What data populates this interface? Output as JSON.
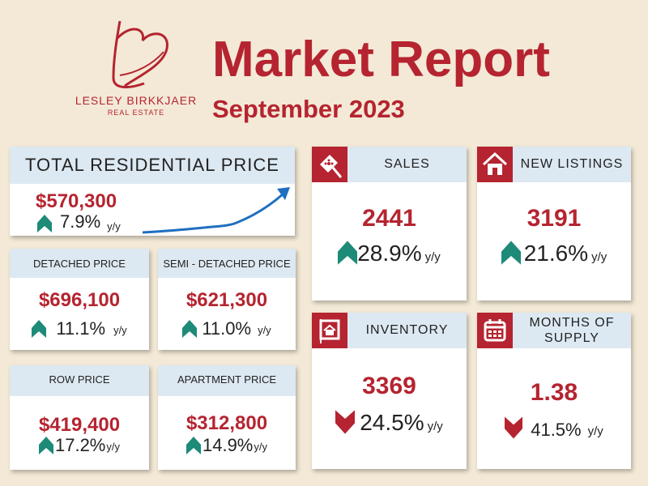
{
  "brand": {
    "name": "LESLEY BIRKKJAER",
    "sub": "REAL ESTATE"
  },
  "header": {
    "title": "Market Report",
    "subtitle": "September 2023"
  },
  "colors": {
    "accent_red": "#b52430",
    "up_teal": "#1e8a78",
    "header_blue": "#dde9f2",
    "background": "#f3e9d6"
  },
  "total": {
    "label": "TOTAL RESIDENTIAL PRICE",
    "value": "$570,300",
    "change": "7.9%",
    "yy": "y/y",
    "direction": "up"
  },
  "detached": {
    "label": "DETACHED PRICE",
    "value": "$696,100",
    "change": "11.1%",
    "yy": "y/y",
    "direction": "up"
  },
  "semi": {
    "label": "SEMI - DETACHED PRICE",
    "value": "$621,300",
    "change": "11.0%",
    "yy": "y/y",
    "direction": "up"
  },
  "row": {
    "label": "ROW PRICE",
    "value": "$419,400",
    "change": "17.2%",
    "yy": "y/y",
    "direction": "up"
  },
  "apartment": {
    "label": "APARTMENT PRICE",
    "value": "$312,800",
    "change": "14.9%",
    "yy": "y/y",
    "direction": "up"
  },
  "sales": {
    "label": "SALES",
    "value": "2441",
    "change": "28.9%",
    "yy": "y/y",
    "direction": "up",
    "icon": "sale-tag-icon"
  },
  "new_listings": {
    "label": "NEW LISTINGS",
    "value": "3191",
    "change": "21.6%",
    "yy": "y/y",
    "direction": "up",
    "icon": "house-icon"
  },
  "inventory": {
    "label": "INVENTORY",
    "value": "3369",
    "change": "24.5%",
    "yy": "y/y",
    "direction": "down",
    "icon": "for-sale-sign-icon"
  },
  "supply": {
    "label_line1": "MONTHS OF",
    "label_line2": "SUPPLY",
    "value": "1.38",
    "change": "41.5%",
    "yy": "y/y",
    "direction": "down",
    "icon": "calendar-icon"
  }
}
